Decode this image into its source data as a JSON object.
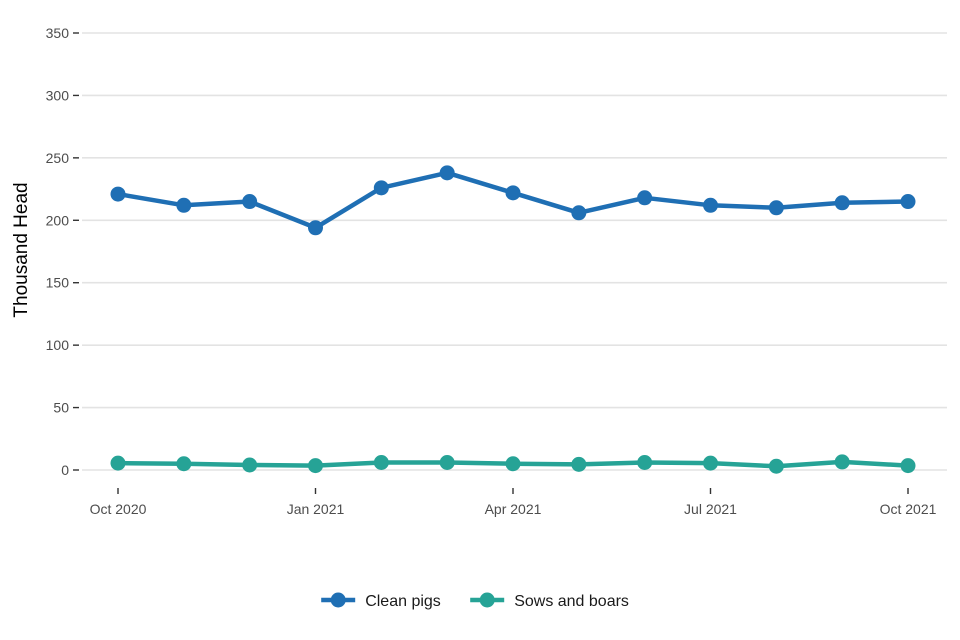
{
  "chart_data": {
    "type": "line",
    "title": "",
    "xlabel": "",
    "ylabel": "Thousand Head",
    "x": [
      "2020-10",
      "2020-11",
      "2020-12",
      "2021-01",
      "2021-02",
      "2021-03",
      "2021-04",
      "2021-05",
      "2021-06",
      "2021-07",
      "2021-08",
      "2021-09",
      "2021-10"
    ],
    "x_ticks": [
      {
        "x": "2020-10",
        "label": "Oct 2020"
      },
      {
        "x": "2021-01",
        "label": "Jan 2021"
      },
      {
        "x": "2021-04",
        "label": "Apr 2021"
      },
      {
        "x": "2021-07",
        "label": "Jul 2021"
      },
      {
        "x": "2021-10",
        "label": "Oct 2021"
      }
    ],
    "ylim": [
      0,
      350
    ],
    "y_ticks": [
      0,
      50,
      100,
      150,
      200,
      250,
      300,
      350
    ],
    "grid": "horizontal",
    "legend_position": "bottom",
    "series": [
      {
        "name": "Clean pigs",
        "color": "#1f6fb4",
        "values": [
          221,
          212,
          215,
          194,
          226,
          238,
          222,
          206,
          218,
          212,
          210,
          214,
          215
        ]
      },
      {
        "name": "Sows and boars",
        "color": "#26a396",
        "values": [
          5.5,
          5,
          4,
          3.5,
          6,
          6,
          5,
          4.5,
          6,
          5.5,
          3,
          6.5,
          3.5
        ]
      }
    ]
  }
}
